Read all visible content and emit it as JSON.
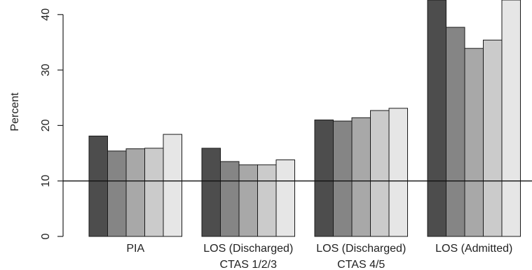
{
  "chart_data": {
    "type": "bar",
    "ylabel": "Percent",
    "ylim": [
      0,
      42
    ],
    "yticks": [
      "0",
      "10",
      "20",
      "30",
      "40"
    ],
    "reference_line": 10,
    "categories": [
      [
        "PIA"
      ],
      [
        "LOS (Discharged)",
        "CTAS 1/2/3"
      ],
      [
        "LOS (Discharged)",
        "CTAS 4/5"
      ],
      [
        "LOS (Admitted)"
      ]
    ],
    "series_colors": [
      "#4d4d4d",
      "#858585",
      "#a8a8a8",
      "#cbcbcb",
      "#e6e6e6"
    ],
    "series": [
      {
        "values": [
          18.1,
          15.9,
          21.0,
          43.5
        ]
      },
      {
        "values": [
          15.4,
          13.5,
          20.8,
          37.7
        ]
      },
      {
        "values": [
          15.8,
          12.9,
          21.4,
          33.9
        ]
      },
      {
        "values": [
          15.9,
          12.9,
          22.7,
          35.4
        ]
      },
      {
        "values": [
          18.4,
          13.8,
          23.1,
          43.5
        ]
      }
    ]
  }
}
